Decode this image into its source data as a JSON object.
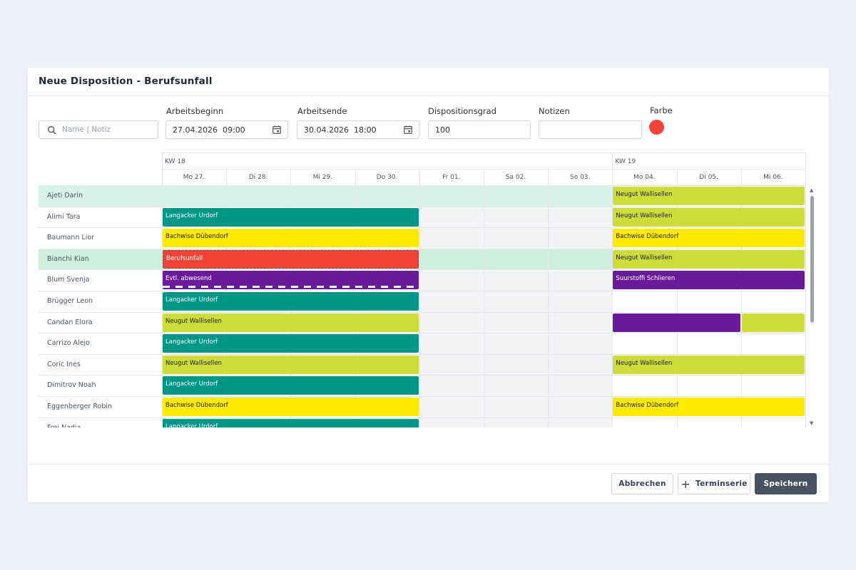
{
  "dialog": {
    "title": "Neue Disposition - Berufsunfall"
  },
  "search": {
    "placeholder": "Name | Notiz"
  },
  "fields": {
    "start_label": "Arbeitsbeginn",
    "start_date": "27.04.2026",
    "start_time": "09:00",
    "end_label": "Arbeitsende",
    "end_date": "30.04.2026",
    "end_time": "18:00",
    "grade_label": "Dispositionsgrad",
    "grade_value": "100",
    "notes_label": "Notizen",
    "notes_value": "",
    "color_label": "Farbe",
    "color_value": "#f04438"
  },
  "calendar": {
    "weeks": [
      "KW 18",
      "KW 19"
    ],
    "days": [
      "Mo 27.",
      "Di 28.",
      "Mi 29.",
      "Do 30.",
      "Fr 01.",
      "Sa 02.",
      "So 03.",
      "Mo 04.",
      "Di 05.",
      "Mi 06."
    ],
    "rows": [
      {
        "name": "Ajeti Darin",
        "bars": [
          {
            "start": 7,
            "span": 3,
            "label": "Neugut Wallisellen",
            "color": "lime"
          }
        ]
      },
      {
        "name": "Alimi Tara",
        "bars": [
          {
            "start": 0,
            "span": 4,
            "label": "Langacker Urdorf",
            "color": "teal"
          },
          {
            "start": 7,
            "span": 3,
            "label": "Neugut Wallisellen",
            "color": "lime"
          }
        ]
      },
      {
        "name": "Baumann Lior",
        "bars": [
          {
            "start": 0,
            "span": 4,
            "label": "Bachwise Dübendorf",
            "color": "yellow"
          },
          {
            "start": 7,
            "span": 3,
            "label": "Bachwise Dübendorf",
            "color": "yellow"
          }
        ]
      },
      {
        "name": "Bianchi Kian",
        "bars": [
          {
            "start": 0,
            "span": 4,
            "label": "Berufsunfall",
            "color": "red"
          },
          {
            "start": 7,
            "span": 3,
            "label": "Neugut Wallisellen",
            "color": "lime"
          }
        ]
      },
      {
        "name": "Blum Svenja",
        "bars": [
          {
            "start": 0,
            "span": 4,
            "label": "Evtl. abwesend",
            "color": "purple",
            "dashed": true
          },
          {
            "start": 7,
            "span": 3,
            "label": "Suurstoffi Schlieren",
            "color": "purple"
          }
        ]
      },
      {
        "name": "Brügger Leon",
        "bars": [
          {
            "start": 0,
            "span": 4,
            "label": "Langacker Urdorf",
            "color": "teal"
          }
        ]
      },
      {
        "name": "Candan Elora",
        "bars": [
          {
            "start": 0,
            "span": 4,
            "label": "Neugut Wallisellen",
            "color": "lime"
          },
          {
            "start": 7,
            "span": 2,
            "label": "",
            "color": "purple"
          },
          {
            "start": 9,
            "span": 1,
            "label": "",
            "color": "lime"
          }
        ]
      },
      {
        "name": "Carrizo Alejo",
        "bars": [
          {
            "start": 0,
            "span": 4,
            "label": "Langacker Urdorf",
            "color": "teal"
          }
        ]
      },
      {
        "name": "Coric Ines",
        "bars": [
          {
            "start": 0,
            "span": 4,
            "label": "Neugut Wallisellen",
            "color": "lime"
          },
          {
            "start": 7,
            "span": 3,
            "label": "Neugut Wallisellen",
            "color": "lime"
          }
        ]
      },
      {
        "name": "Dimitrov Noah",
        "bars": [
          {
            "start": 0,
            "span": 4,
            "label": "Langacker Urdorf",
            "color": "teal"
          }
        ]
      },
      {
        "name": "Eggenberger Robin",
        "bars": [
          {
            "start": 0,
            "span": 4,
            "label": "Bachwise Dübendorf",
            "color": "yellow"
          },
          {
            "start": 7,
            "span": 3,
            "label": "Bachwise Dübendorf",
            "color": "yellow"
          }
        ]
      },
      {
        "name": "Frei Nadia",
        "bars": [
          {
            "start": 0,
            "span": 4,
            "label": "Langacker Urdorf",
            "color": "teal"
          }
        ]
      }
    ]
  },
  "buttons": {
    "cancel": "Abbrechen",
    "series": "Terminserie",
    "save": "Speichern"
  }
}
